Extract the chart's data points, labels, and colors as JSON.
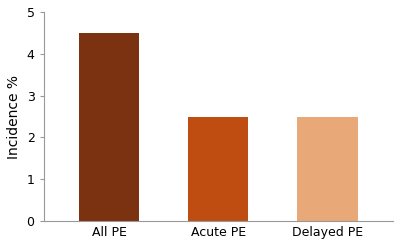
{
  "categories": [
    "All PE",
    "Acute PE",
    "Delayed PE"
  ],
  "values": [
    4.5,
    2.5,
    2.5
  ],
  "bar_colors": [
    "#7B3210",
    "#BF4D12",
    "#E8A878"
  ],
  "ylabel": "Incidence %",
  "ylim": [
    0,
    5
  ],
  "yticks": [
    0,
    1,
    2,
    3,
    4,
    5
  ],
  "background_color": "#ffffff",
  "bar_width": 0.55,
  "ylabel_fontsize": 10,
  "tick_fontsize": 9,
  "xtick_fontsize": 9
}
